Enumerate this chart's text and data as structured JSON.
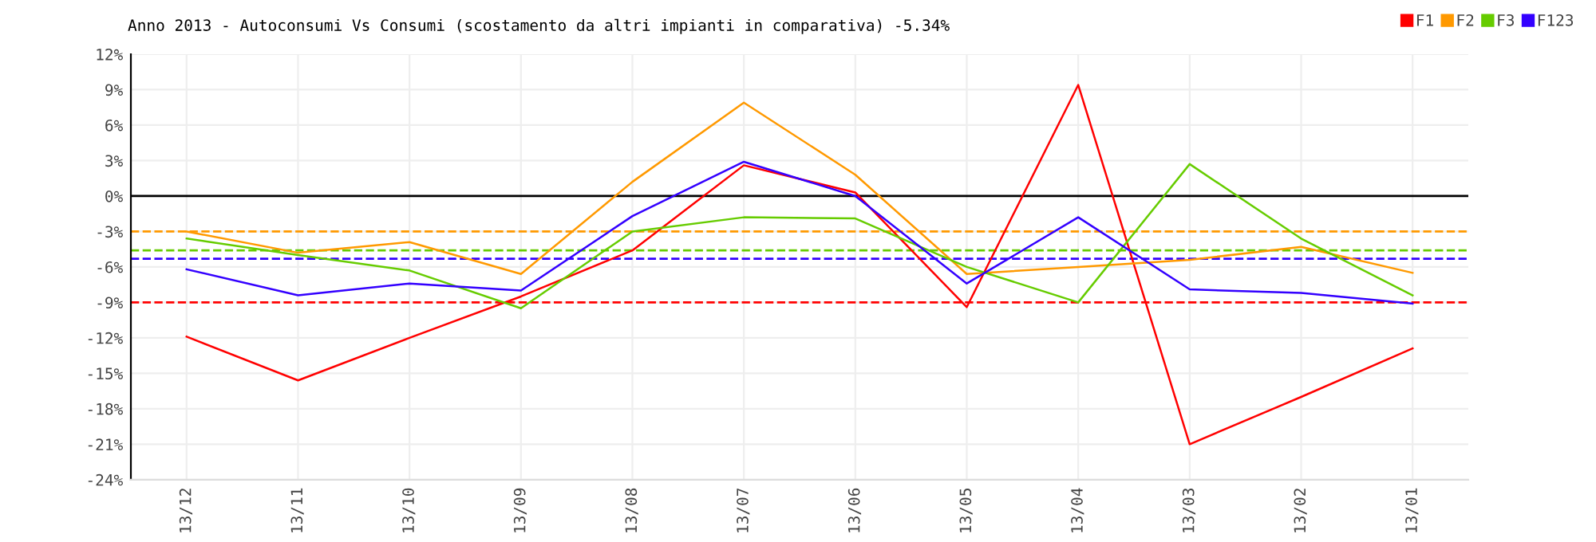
{
  "chart_data": {
    "type": "line",
    "title": "Anno 2013 - Autoconsumi Vs Consumi (scostamento da altri impianti in comparativa) -5.34%",
    "categories": [
      "13/12",
      "13/11",
      "13/10",
      "13/09",
      "13/08",
      "13/07",
      "13/06",
      "13/05",
      "13/04",
      "13/03",
      "13/02",
      "13/01"
    ],
    "series": [
      {
        "name": "F1",
        "color": "#ff0000",
        "values": [
          -11.9,
          -15.6,
          -12.0,
          -8.5,
          -4.6,
          2.6,
          0.3,
          -9.4,
          9.4,
          -21.0,
          -17.0,
          -12.9
        ]
      },
      {
        "name": "F2",
        "color": "#ff9900",
        "values": [
          -3.0,
          -4.8,
          -3.9,
          -6.6,
          1.2,
          7.9,
          1.8,
          -6.6,
          -6.0,
          -5.4,
          -4.3,
          -6.5
        ]
      },
      {
        "name": "F3",
        "color": "#66cc00",
        "values": [
          -3.6,
          -5.0,
          -6.3,
          -9.5,
          -3.0,
          -1.8,
          -1.9,
          -6.0,
          -9.0,
          2.7,
          -3.6,
          -8.4
        ]
      },
      {
        "name": "F123",
        "color": "#3300ff",
        "values": [
          -6.2,
          -8.4,
          -7.4,
          -8.0,
          -1.7,
          2.9,
          0.0,
          -7.4,
          -1.8,
          -7.9,
          -8.2,
          -9.1
        ]
      }
    ],
    "ylim": [
      -24,
      12
    ],
    "yticks": [
      {
        "value": -24,
        "label": "-24%"
      },
      {
        "value": -21,
        "label": "-21%"
      },
      {
        "value": -18,
        "label": "-18%"
      },
      {
        "value": -15,
        "label": "-15%"
      },
      {
        "value": -12,
        "label": "-12%"
      },
      {
        "value": -9,
        "label": "-9%"
      },
      {
        "value": -6,
        "label": "-6%"
      },
      {
        "value": -3,
        "label": "-3%"
      },
      {
        "value": 0,
        "label": "0%"
      },
      {
        "value": 3,
        "label": "3%"
      },
      {
        "value": 6,
        "label": "6%"
      },
      {
        "value": 9,
        "label": "9%"
      },
      {
        "value": 12,
        "label": "12%"
      }
    ],
    "ref_lines": [
      {
        "axis": "y",
        "value": 0,
        "color": "#000000",
        "line_style": "solid"
      },
      {
        "axis": "y",
        "value": -9,
        "color": "#ff0000",
        "line_style": "dashed"
      },
      {
        "axis": "y",
        "value": -3,
        "color": "#ff9900",
        "line_style": "dashed"
      },
      {
        "axis": "y",
        "value": -4.6,
        "color": "#66cc00",
        "line_style": "dashed"
      },
      {
        "axis": "y",
        "value": -5.3,
        "color": "#3300ff",
        "line_style": "dashed"
      }
    ],
    "grid": true,
    "legend": "top right",
    "marker": "none",
    "line_style": "solid"
  }
}
